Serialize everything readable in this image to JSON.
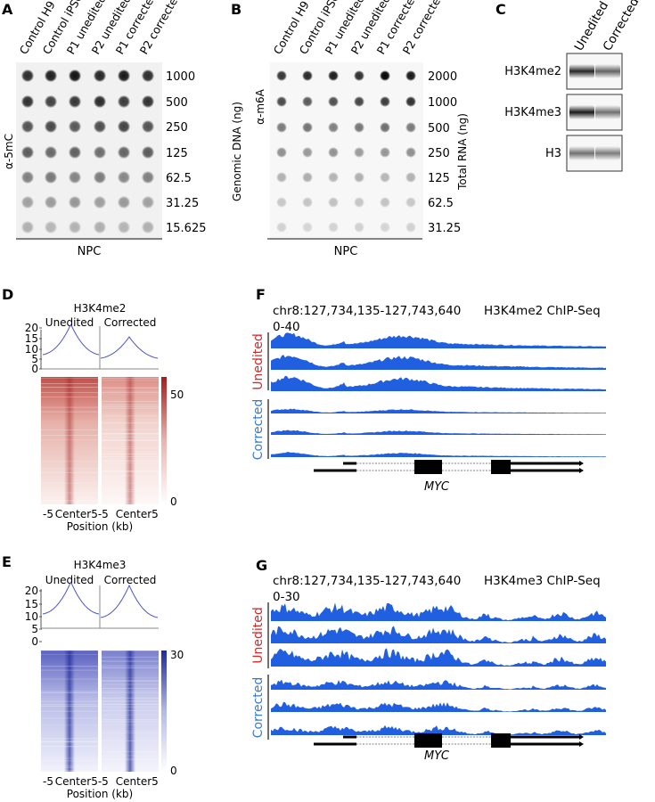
{
  "panel_a": {
    "letter": "A",
    "samples": [
      "Control H9",
      "Control iPSC",
      "P1 unedited",
      "P2 unedited",
      "P1 corrected",
      "P2 corrected"
    ],
    "amounts": [
      "1000",
      "500",
      "250",
      "125",
      "62.5",
      "31.25",
      "15.625"
    ],
    "side_label": "α-5mC",
    "group_label": "NPC"
  },
  "panel_b": {
    "letter": "B",
    "samples": [
      "Control H9",
      "Control iPSC",
      "P1 unedited",
      "P2 unedited",
      "P1 corrected",
      "P2 corrected"
    ],
    "amounts": [
      "2000",
      "1000",
      "500",
      "250",
      "125",
      "62.5",
      "31.25"
    ],
    "left_axis_label": "Genomic DNA (ng)",
    "antibody_label": "α-m6A",
    "right_axis_label": "Total RNA (ng)",
    "group_label": "NPC"
  },
  "panel_c": {
    "letter": "C",
    "columns": [
      "Unedited",
      "Corrected"
    ],
    "rows": [
      "H3K4me2",
      "H3K4me3",
      "H3"
    ]
  },
  "panel_d": {
    "letter": "D",
    "mark": "H3K4me2",
    "columns": [
      "Unedited",
      "Corrected"
    ],
    "profile_yticks": [
      "20",
      "15",
      "10",
      "5",
      "0"
    ],
    "colorbar_ticks": [
      "50",
      "0"
    ],
    "xticks": [
      "-5",
      "Center",
      "5-5",
      "Center",
      "5"
    ],
    "xlabel": "Position (kb)",
    "color": "#b22222"
  },
  "panel_e": {
    "letter": "E",
    "mark": "H3K4me3",
    "columns": [
      "Unedited",
      "Corrected"
    ],
    "profile_yticks": [
      "20",
      "15",
      "10",
      "5",
      "0"
    ],
    "colorbar_ticks": [
      "30",
      "0"
    ],
    "xticks": [
      "-5",
      "Center",
      "5-5",
      "Center",
      "5"
    ],
    "xlabel": "Position (kb)",
    "color": "#2b2f9e"
  },
  "panel_f": {
    "letter": "F",
    "locus": "chr8:127,734,135-127,743,640",
    "assay": "H3K4me2 ChIP-Seq",
    "range": "0-40",
    "group1": "Unedited",
    "group2": "Corrected",
    "gene": "MYC",
    "group1_color": "#d62728",
    "group2_color": "#3a7bc8",
    "track_color": "#1f5fe0"
  },
  "panel_g": {
    "letter": "G",
    "locus": "chr8:127,734,135-127,743,640",
    "assay": "H3K4me3 ChIP-Seq",
    "range": "0-30",
    "group1": "Unedited",
    "group2": "Corrected",
    "gene": "MYC",
    "group1_color": "#d62728",
    "group2_color": "#3a7bc8",
    "track_color": "#1f5fe0"
  }
}
